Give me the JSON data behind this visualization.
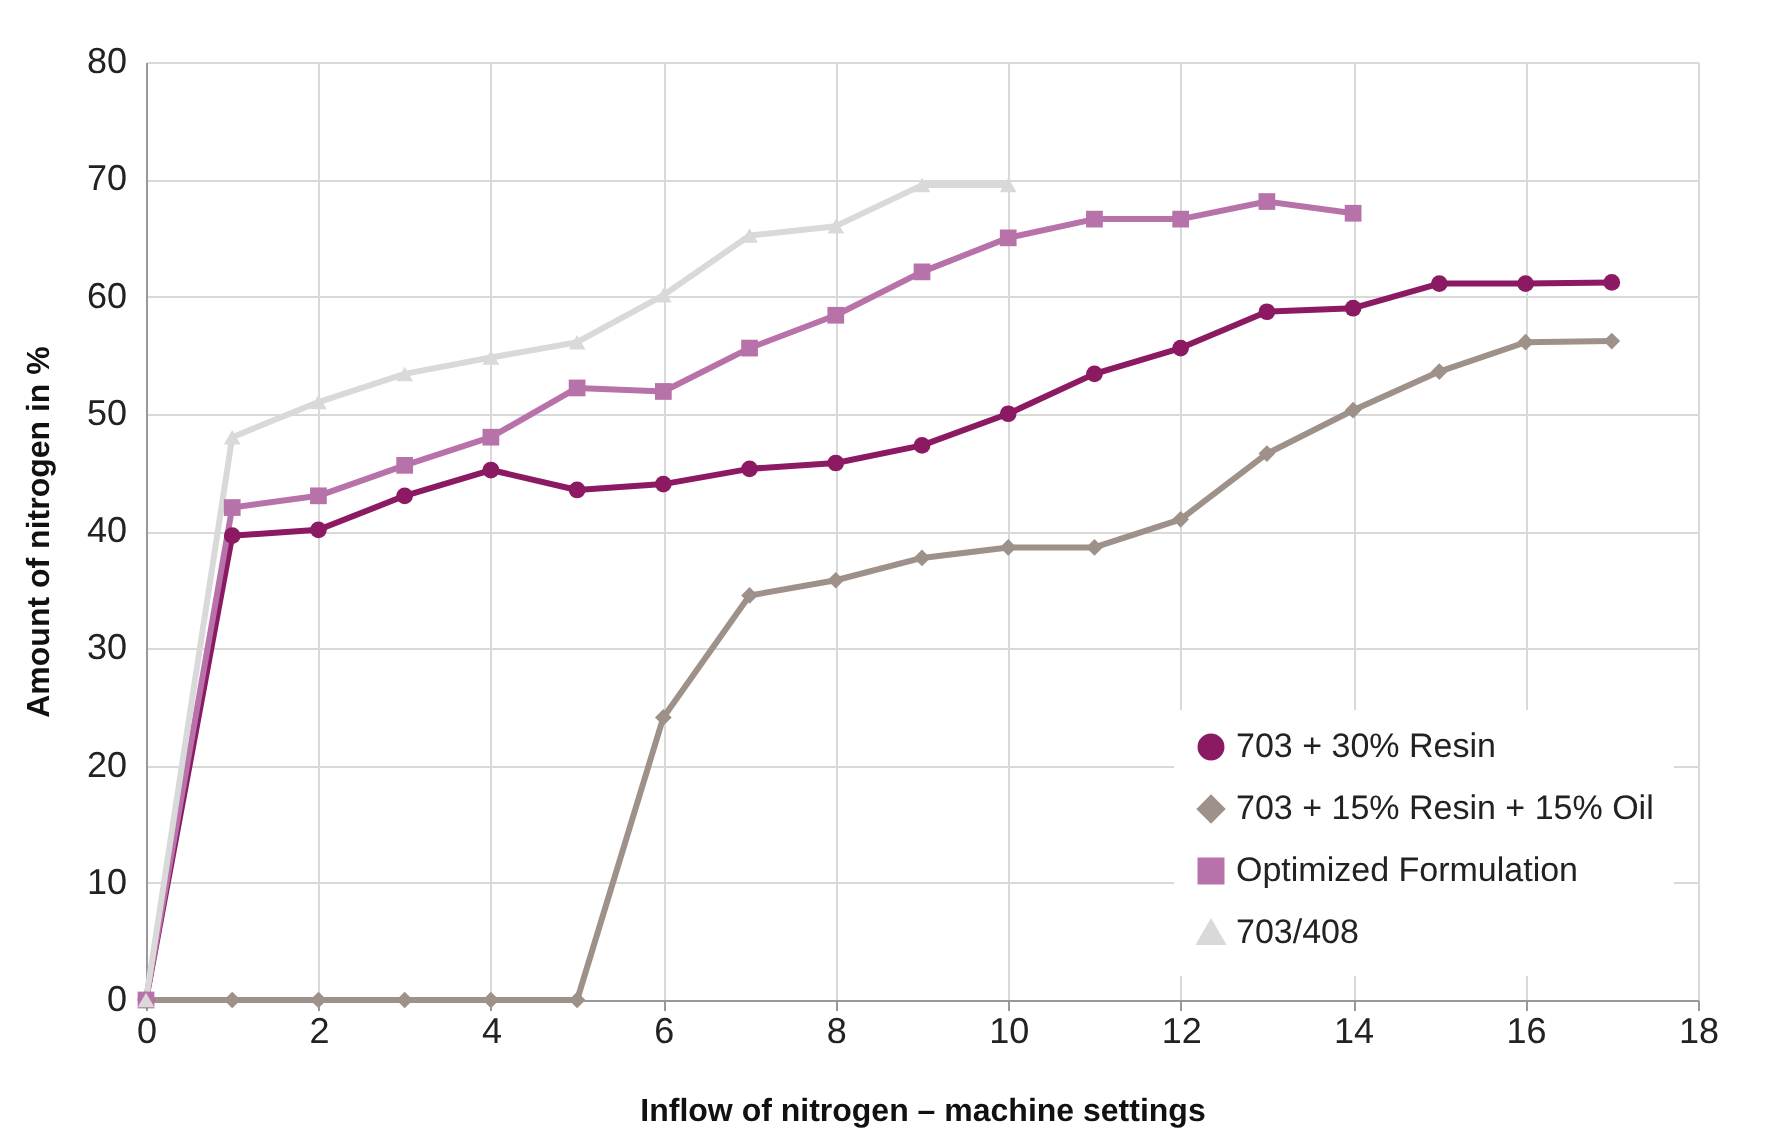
{
  "chart_data": {
    "type": "line",
    "xlabel": "Inflow of nitrogen – machine settings",
    "ylabel": "Amount of nitrogen in %",
    "xlim": [
      0,
      18
    ],
    "xticks": [
      0,
      2,
      4,
      6,
      8,
      10,
      12,
      14,
      16,
      18
    ],
    "ylim": [
      0,
      80
    ],
    "yticks": [
      0,
      10,
      20,
      30,
      40,
      50,
      60,
      70,
      80
    ],
    "grid": true,
    "legend": "bottom right",
    "line_style": "solid",
    "series": [
      {
        "name": "703 + 30% Resin",
        "color": "#8b1a62",
        "marker": "circle",
        "x": [
          0,
          1,
          2,
          3,
          4,
          5,
          6,
          7,
          8,
          9,
          10,
          11,
          12,
          13,
          14,
          15,
          16,
          17
        ],
        "values": [
          0,
          39.6,
          40.1,
          43,
          45.2,
          43.5,
          44,
          45.3,
          45.8,
          47.3,
          50,
          53.4,
          55.6,
          58.7,
          59,
          61.1,
          61.1,
          61.2
        ]
      },
      {
        "name": "703 + 15% Resin + 15% Oil",
        "color": "#9e918a",
        "marker": "diamond",
        "x": [
          0,
          1,
          2,
          3,
          4,
          5,
          6,
          7,
          8,
          9,
          10,
          11,
          12,
          13,
          14,
          15,
          16,
          17
        ],
        "values": [
          0,
          0,
          0,
          0,
          0,
          0,
          24.1,
          34.5,
          35.8,
          37.7,
          38.6,
          38.6,
          41,
          46.6,
          50.3,
          53.6,
          56.1,
          56.2
        ]
      },
      {
        "name": "Optimized Formulation",
        "color": "#b872aa",
        "marker": "square",
        "x": [
          0,
          1,
          2,
          3,
          4,
          5,
          6,
          7,
          8,
          9,
          10,
          11,
          12,
          13,
          14
        ],
        "values": [
          0,
          42,
          43,
          45.6,
          48,
          52.2,
          51.9,
          55.6,
          58.4,
          62.1,
          65,
          66.6,
          66.6,
          68.1,
          67.1
        ]
      },
      {
        "name": "703/408",
        "color": "#d9d9d9",
        "marker": "triangle",
        "x": [
          0,
          1,
          2,
          3,
          4,
          5,
          6,
          7,
          8,
          9,
          10
        ],
        "values": [
          0,
          48,
          51,
          53.4,
          54.8,
          56.1,
          60.1,
          65.2,
          66,
          69.5,
          69.5
        ]
      }
    ]
  }
}
